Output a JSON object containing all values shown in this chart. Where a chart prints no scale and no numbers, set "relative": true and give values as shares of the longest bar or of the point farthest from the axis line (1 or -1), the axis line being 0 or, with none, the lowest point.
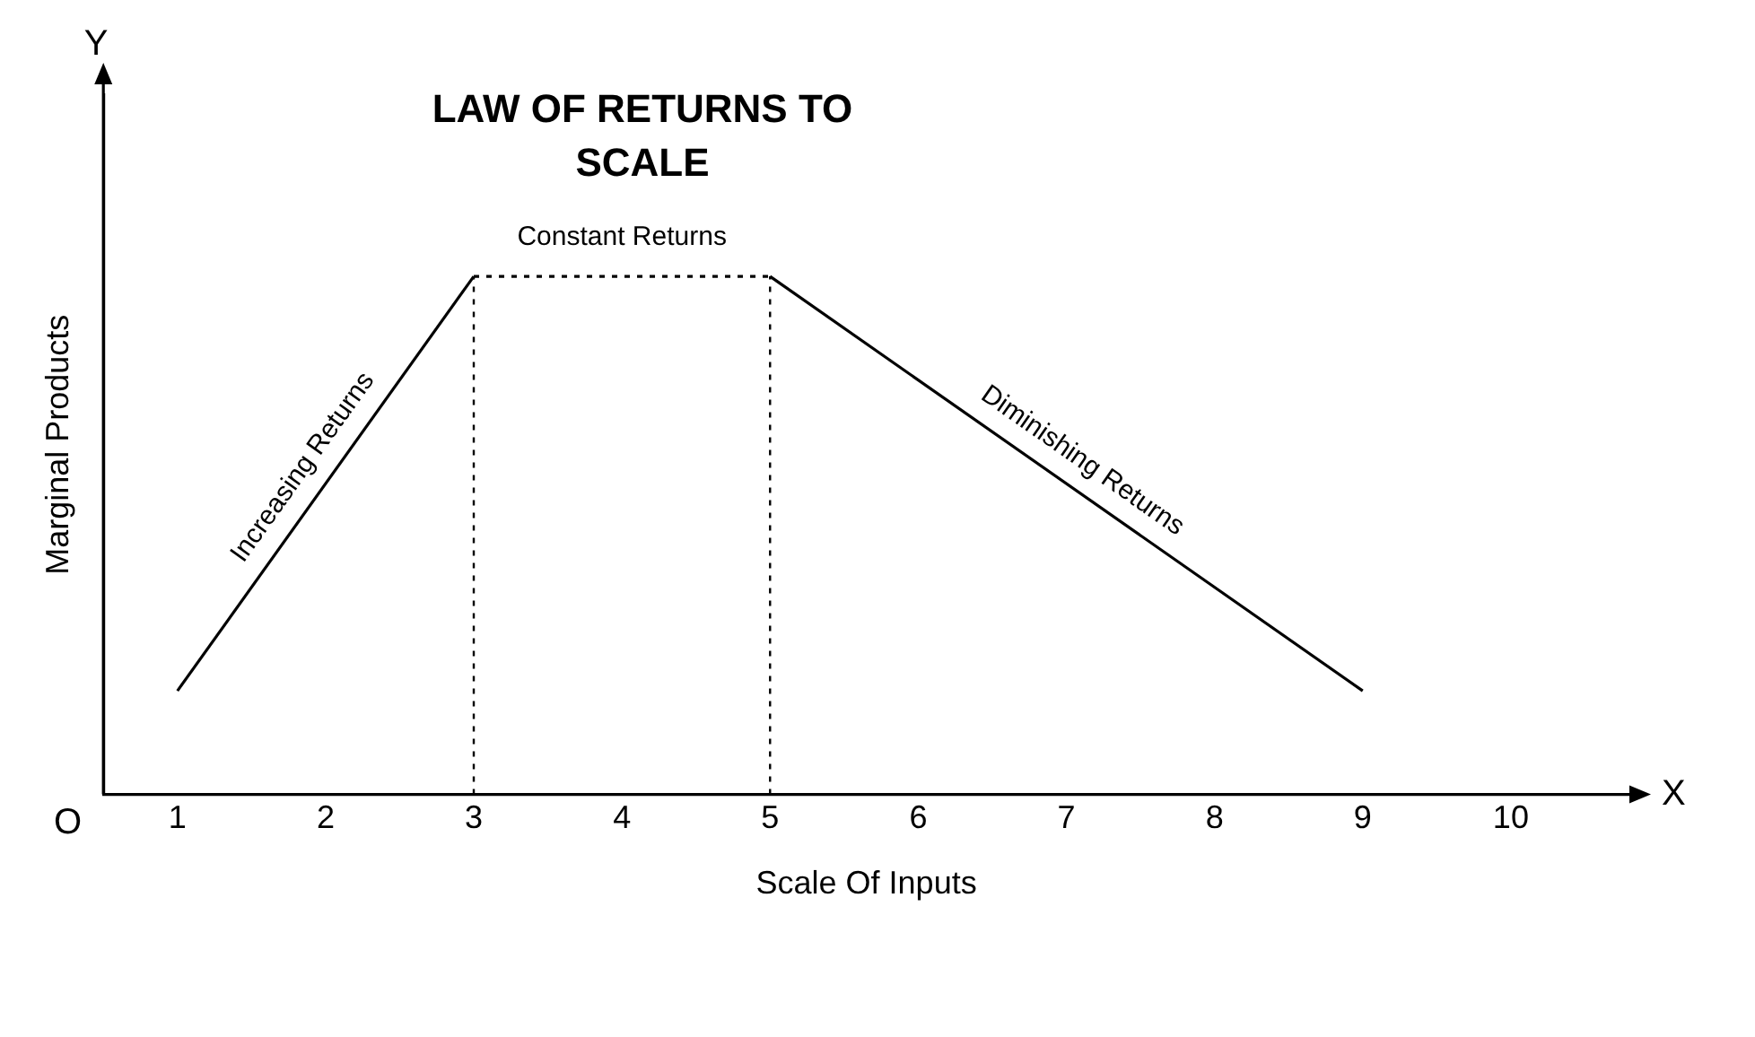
{
  "chart_data": {
    "type": "line",
    "title": "LAW OF RETURNS TO SCALE",
    "xlabel": "Scale Of Inputs",
    "ylabel": "Marginal Products",
    "relative": true,
    "xlim": [
      0.5,
      10.8
    ],
    "xticks": [
      1,
      2,
      3,
      4,
      5,
      6,
      7,
      8,
      9,
      10
    ],
    "grid": false,
    "legend": false,
    "marker": "none",
    "series": [
      {
        "color": "#000000",
        "x": [
          1,
          3
        ],
        "values": [
          0.2,
          1
        ],
        "line_style": "solid"
      },
      {
        "color": "#000000",
        "x": [
          3,
          5
        ],
        "values": [
          1,
          1
        ],
        "line_style": "dotted"
      },
      {
        "color": "#000000",
        "x": [
          5,
          9
        ],
        "values": [
          1,
          0.2
        ],
        "line_style": "solid"
      }
    ],
    "ref_lines": [
      {
        "axis": "x",
        "value": 3,
        "line_style": "dotted",
        "color": "#000000"
      },
      {
        "axis": "x",
        "value": 5,
        "line_style": "dotted",
        "color": "#000000"
      }
    ],
    "annotations": [
      {
        "text": "Increasing Returns",
        "x": 2,
        "y": 0.6
      },
      {
        "text": "Constant Returns",
        "x": 4,
        "y": 1
      },
      {
        "text": "Diminishing Returns",
        "x": 7,
        "y": 0.6
      },
      "Y",
      "X",
      "O"
    ]
  }
}
